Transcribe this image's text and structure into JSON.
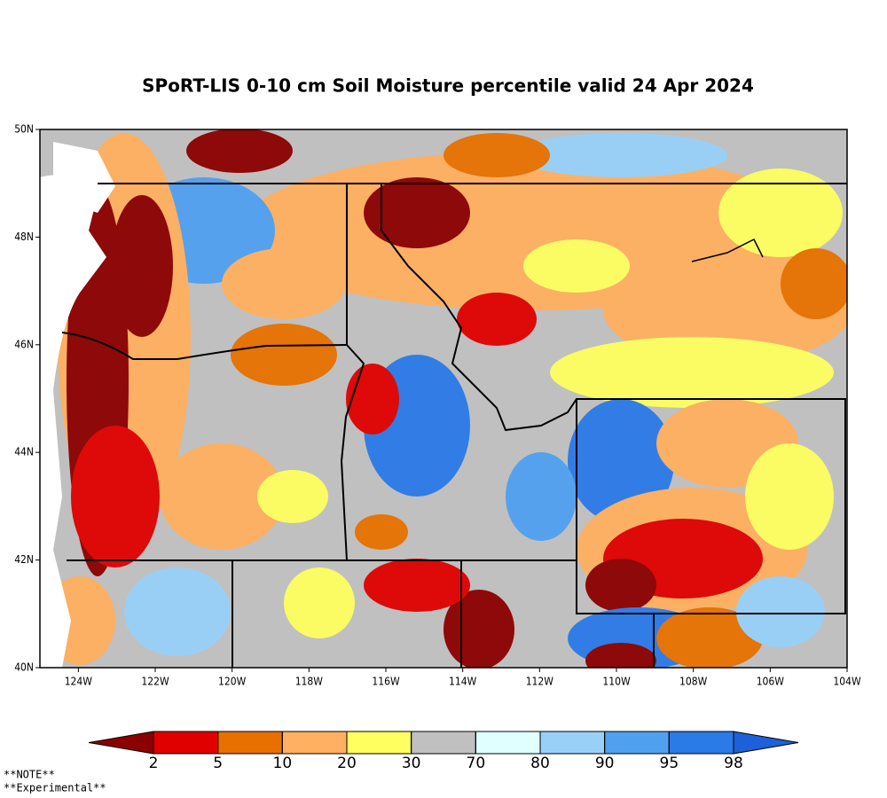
{
  "title": "SPoRT-LIS 0-10 cm Soil Moisture percentile valid 24 Apr 2024",
  "map": {
    "lon_labels": [
      "124W",
      "122W",
      "120W",
      "118W",
      "116W",
      "114W",
      "112W",
      "110W",
      "108W",
      "106W",
      "104W"
    ],
    "lat_labels": [
      "50N",
      "48N",
      "46N",
      "44N",
      "42N",
      "40N"
    ]
  },
  "colorbar": {
    "ticks": [
      2,
      5,
      10,
      20,
      30,
      70,
      80,
      90,
      95,
      98
    ],
    "colors": [
      "#8c0000",
      "#e00000",
      "#e87000",
      "#ffb060",
      "#ffff60",
      "#c0c0c0",
      "#e0ffff",
      "#98d0f8",
      "#50a0f0",
      "#2a7ae8",
      "#1e60d8"
    ]
  },
  "notes": [
    "**NOTE**",
    "**Experimental**"
  ]
}
